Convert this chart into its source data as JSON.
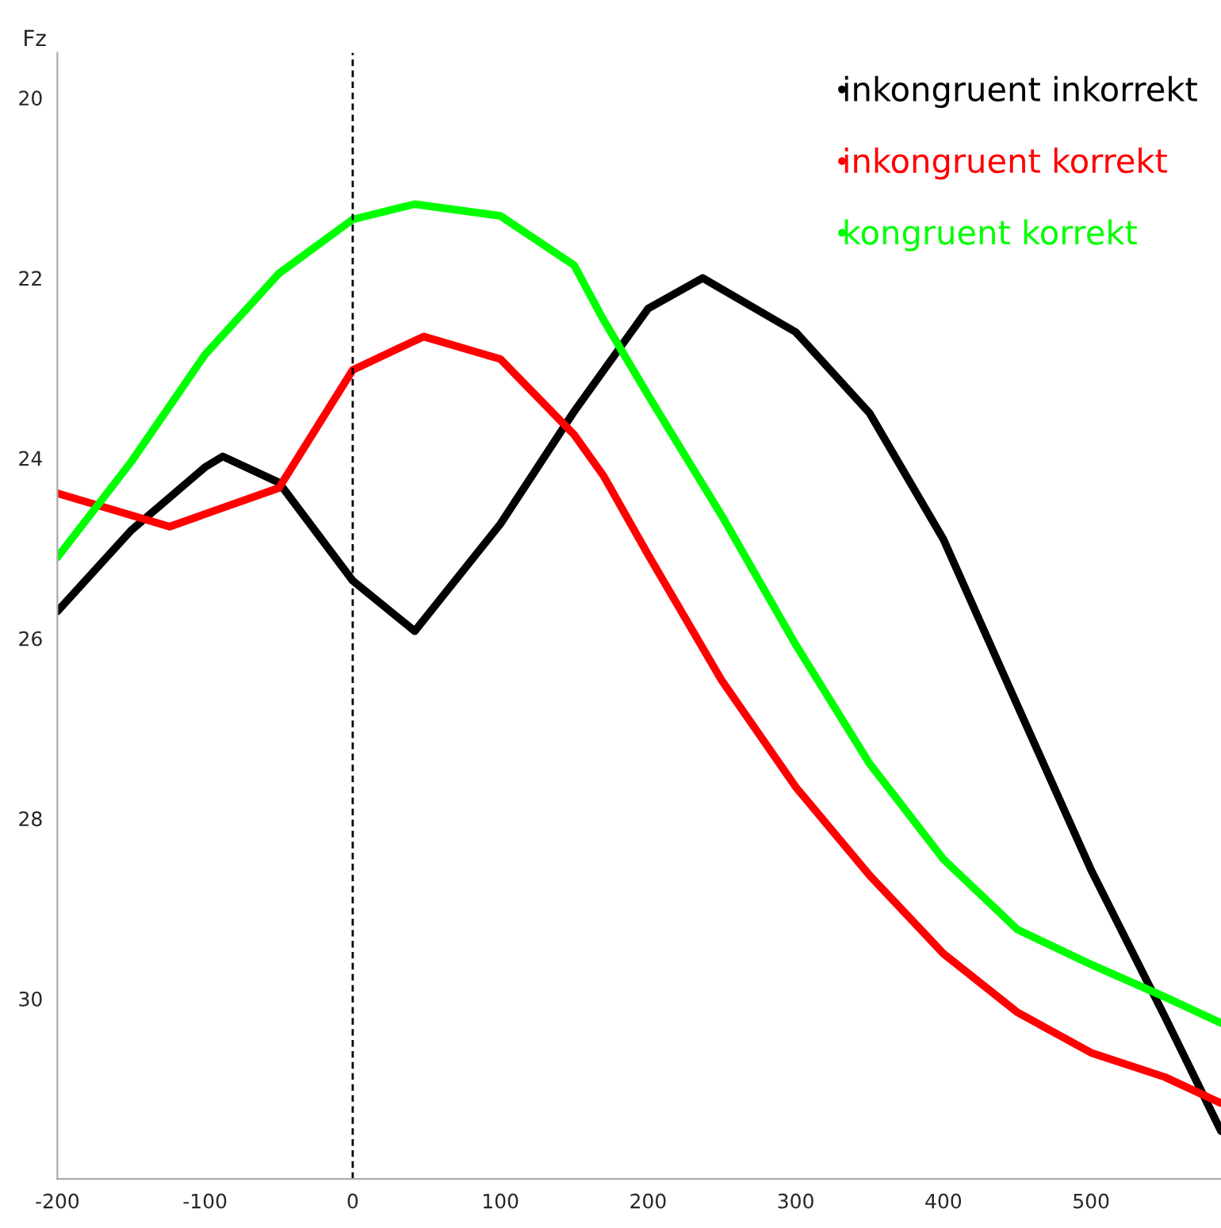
{
  "chart_data": {
    "type": "line",
    "ylabel": "Fz",
    "x": [
      -200,
      -150,
      -124,
      -100,
      -88,
      -50,
      0,
      42,
      48,
      100,
      150,
      170,
      200,
      237,
      250,
      300,
      350,
      400,
      450,
      500,
      550,
      588
    ],
    "series": [
      {
        "name": "inkongruent inkorrekt",
        "color": "#000000",
        "values": [
          25.7,
          24.8,
          null,
          24.1,
          23.98,
          24.27,
          25.36,
          25.92,
          null,
          24.73,
          23.48,
          null,
          22.34,
          22.0,
          null,
          22.6,
          23.5,
          24.9,
          26.74,
          28.57,
          30.2,
          31.47
        ]
      },
      {
        "name": "inkongruent korrekt",
        "color": "#ff0000",
        "values": [
          24.39,
          null,
          24.76,
          null,
          null,
          24.33,
          23.02,
          null,
          22.65,
          22.9,
          23.74,
          24.2,
          25.07,
          null,
          26.47,
          27.65,
          28.63,
          29.5,
          30.15,
          30.6,
          30.87,
          31.16
        ]
      },
      {
        "name": "kongruent korrekt",
        "color": "#00ff00",
        "values": [
          25.1,
          24.04,
          null,
          22.85,
          null,
          21.95,
          21.35,
          21.18,
          null,
          21.31,
          21.86,
          22.47,
          23.3,
          null,
          24.64,
          26.07,
          27.39,
          28.45,
          29.23,
          29.62,
          29.98,
          30.27
        ]
      }
    ],
    "xlim": [
      -200,
      588
    ],
    "ylim": [
      32,
      19.5
    ],
    "xticks": [
      -200,
      -100,
      0,
      100,
      200,
      300,
      400,
      500
    ],
    "yticks": [
      20,
      22,
      24,
      26,
      28,
      30
    ],
    "ref_lines": [
      {
        "axis": "x",
        "value": 0,
        "color": "#000000",
        "line_style": "dashed"
      }
    ],
    "legend": "top right",
    "grid": false
  }
}
